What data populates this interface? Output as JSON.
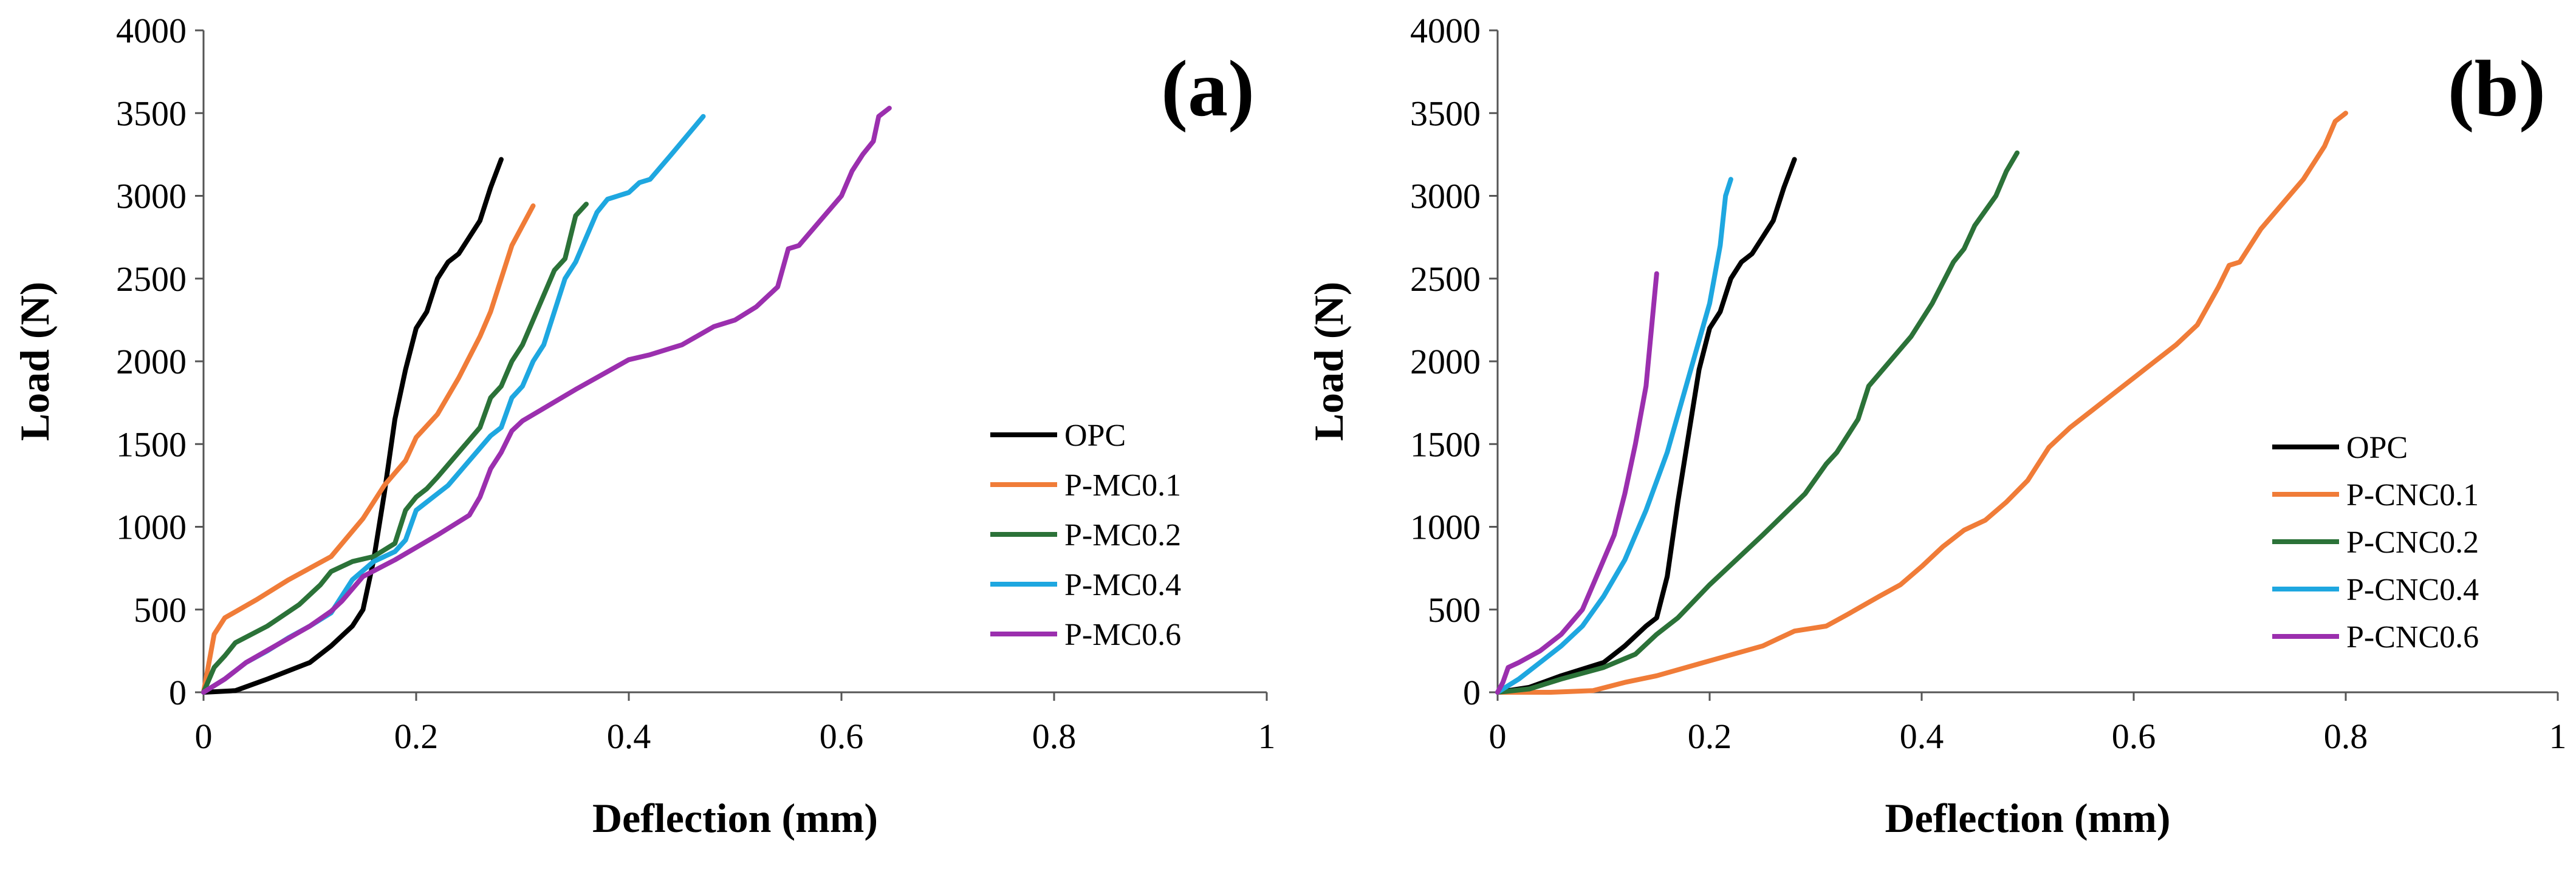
{
  "colors": {
    "OPC": "#000000",
    "s1": "#f07c38",
    "s2": "#2b7238",
    "s3": "#1ea7e0",
    "s4": "#9b2fae"
  },
  "chart_data": [
    {
      "type": "line",
      "panel_label": "(a)",
      "xlabel": "Deflection (mm)",
      "ylabel": "Load  (N)",
      "xlim": [
        0,
        1
      ],
      "ylim": [
        0,
        4000
      ],
      "xticks": [
        "0",
        "0.2",
        "0.4",
        "0.6",
        "0.8",
        "1"
      ],
      "xtick_values": [
        0,
        0.2,
        0.4,
        0.6,
        0.8,
        1
      ],
      "yticks": [
        "0",
        "500",
        "1000",
        "1500",
        "2000",
        "2500",
        "3000",
        "3500",
        "4000"
      ],
      "ytick_values": [
        0,
        500,
        1000,
        1500,
        2000,
        2500,
        3000,
        3500,
        4000
      ],
      "grid": false,
      "legend_position": "right-middle",
      "series": [
        {
          "name": "OPC",
          "color_key": "OPC",
          "points": [
            [
              0,
              0
            ],
            [
              0.03,
              10
            ],
            [
              0.06,
              80
            ],
            [
              0.1,
              180
            ],
            [
              0.12,
              280
            ],
            [
              0.14,
              400
            ],
            [
              0.15,
              500
            ],
            [
              0.16,
              800
            ],
            [
              0.17,
              1200
            ],
            [
              0.18,
              1650
            ],
            [
              0.19,
              1950
            ],
            [
              0.2,
              2200
            ],
            [
              0.21,
              2300
            ],
            [
              0.22,
              2500
            ],
            [
              0.23,
              2600
            ],
            [
              0.24,
              2650
            ],
            [
              0.25,
              2750
            ],
            [
              0.26,
              2850
            ],
            [
              0.27,
              3050
            ],
            [
              0.28,
              3220
            ]
          ]
        },
        {
          "name": "P-MC0.1",
          "color_key": "s1",
          "points": [
            [
              0,
              0
            ],
            [
              0.01,
              350
            ],
            [
              0.02,
              450
            ],
            [
              0.05,
              560
            ],
            [
              0.08,
              680
            ],
            [
              0.12,
              820
            ],
            [
              0.15,
              1050
            ],
            [
              0.17,
              1250
            ],
            [
              0.19,
              1400
            ],
            [
              0.2,
              1540
            ],
            [
              0.22,
              1680
            ],
            [
              0.24,
              1900
            ],
            [
              0.26,
              2150
            ],
            [
              0.27,
              2300
            ],
            [
              0.28,
              2500
            ],
            [
              0.29,
              2700
            ],
            [
              0.31,
              2940
            ]
          ]
        },
        {
          "name": "P-MC0.2",
          "color_key": "s2",
          "points": [
            [
              0,
              0
            ],
            [
              0.01,
              150
            ],
            [
              0.02,
              220
            ],
            [
              0.03,
              300
            ],
            [
              0.06,
              400
            ],
            [
              0.09,
              530
            ],
            [
              0.11,
              650
            ],
            [
              0.12,
              730
            ],
            [
              0.14,
              790
            ],
            [
              0.16,
              820
            ],
            [
              0.18,
              900
            ],
            [
              0.19,
              1100
            ],
            [
              0.2,
              1180
            ],
            [
              0.21,
              1230
            ],
            [
              0.22,
              1300
            ],
            [
              0.24,
              1450
            ],
            [
              0.26,
              1600
            ],
            [
              0.27,
              1780
            ],
            [
              0.28,
              1850
            ],
            [
              0.29,
              2000
            ],
            [
              0.3,
              2100
            ],
            [
              0.31,
              2250
            ],
            [
              0.32,
              2400
            ],
            [
              0.33,
              2550
            ],
            [
              0.34,
              2620
            ],
            [
              0.35,
              2880
            ],
            [
              0.36,
              2950
            ]
          ]
        },
        {
          "name": "P-MC0.4",
          "color_key": "s3",
          "points": [
            [
              0,
              0
            ],
            [
              0.02,
              80
            ],
            [
              0.04,
              180
            ],
            [
              0.06,
              250
            ],
            [
              0.08,
              330
            ],
            [
              0.1,
              400
            ],
            [
              0.12,
              480
            ],
            [
              0.14,
              680
            ],
            [
              0.16,
              790
            ],
            [
              0.18,
              850
            ],
            [
              0.19,
              920
            ],
            [
              0.2,
              1100
            ],
            [
              0.22,
              1200
            ],
            [
              0.23,
              1250
            ],
            [
              0.25,
              1400
            ],
            [
              0.27,
              1550
            ],
            [
              0.28,
              1600
            ],
            [
              0.29,
              1780
            ],
            [
              0.3,
              1850
            ],
            [
              0.31,
              2000
            ],
            [
              0.32,
              2100
            ],
            [
              0.33,
              2300
            ],
            [
              0.34,
              2500
            ],
            [
              0.35,
              2600
            ],
            [
              0.36,
              2750
            ],
            [
              0.37,
              2900
            ],
            [
              0.38,
              2980
            ],
            [
              0.4,
              3020
            ],
            [
              0.41,
              3080
            ],
            [
              0.42,
              3100
            ],
            [
              0.44,
              3250
            ],
            [
              0.47,
              3480
            ]
          ]
        },
        {
          "name": "P-MC0.6",
          "color_key": "s4",
          "points": [
            [
              0,
              0
            ],
            [
              0.02,
              80
            ],
            [
              0.04,
              180
            ],
            [
              0.07,
              290
            ],
            [
              0.1,
              400
            ],
            [
              0.12,
              490
            ],
            [
              0.13,
              550
            ],
            [
              0.15,
              700
            ],
            [
              0.18,
              800
            ],
            [
              0.22,
              950
            ],
            [
              0.25,
              1070
            ],
            [
              0.26,
              1180
            ],
            [
              0.27,
              1350
            ],
            [
              0.28,
              1450
            ],
            [
              0.29,
              1580
            ],
            [
              0.3,
              1640
            ],
            [
              0.35,
              1830
            ],
            [
              0.4,
              2010
            ],
            [
              0.42,
              2040
            ],
            [
              0.44,
              2080
            ],
            [
              0.45,
              2100
            ],
            [
              0.48,
              2210
            ],
            [
              0.5,
              2250
            ],
            [
              0.52,
              2330
            ],
            [
              0.54,
              2450
            ],
            [
              0.55,
              2680
            ],
            [
              0.56,
              2700
            ],
            [
              0.58,
              2850
            ],
            [
              0.6,
              3000
            ],
            [
              0.61,
              3150
            ],
            [
              0.62,
              3250
            ],
            [
              0.63,
              3330
            ],
            [
              0.635,
              3480
            ],
            [
              0.645,
              3530
            ]
          ]
        }
      ]
    },
    {
      "type": "line",
      "panel_label": "(b)",
      "xlabel": "Deflection (mm)",
      "ylabel": "Load  (N)",
      "xlim": [
        0,
        1
      ],
      "ylim": [
        0,
        4000
      ],
      "xticks": [
        "0",
        "0.2",
        "0.4",
        "0.6",
        "0.8",
        "1"
      ],
      "xtick_values": [
        0,
        0.2,
        0.4,
        0.6,
        0.8,
        1
      ],
      "yticks": [
        "0",
        "500",
        "1000",
        "1500",
        "2000",
        "2500",
        "3000",
        "3500",
        "4000"
      ],
      "ytick_values": [
        0,
        500,
        1000,
        1500,
        2000,
        2500,
        3000,
        3500,
        4000
      ],
      "grid": false,
      "legend_position": "bottom-right",
      "series": [
        {
          "name": "OPC",
          "color_key": "OPC",
          "points": [
            [
              0,
              0
            ],
            [
              0.03,
              30
            ],
            [
              0.06,
              100
            ],
            [
              0.1,
              180
            ],
            [
              0.12,
              280
            ],
            [
              0.14,
              400
            ],
            [
              0.15,
              450
            ],
            [
              0.16,
              700
            ],
            [
              0.17,
              1150
            ],
            [
              0.18,
              1550
            ],
            [
              0.19,
              1950
            ],
            [
              0.2,
              2200
            ],
            [
              0.21,
              2300
            ],
            [
              0.22,
              2500
            ],
            [
              0.23,
              2600
            ],
            [
              0.24,
              2650
            ],
            [
              0.25,
              2750
            ],
            [
              0.26,
              2850
            ],
            [
              0.27,
              3050
            ],
            [
              0.28,
              3220
            ]
          ]
        },
        {
          "name": "P-CNC0.1",
          "color_key": "s1",
          "points": [
            [
              0,
              0
            ],
            [
              0.05,
              0
            ],
            [
              0.09,
              10
            ],
            [
              0.12,
              60
            ],
            [
              0.15,
              100
            ],
            [
              0.2,
              190
            ],
            [
              0.25,
              280
            ],
            [
              0.28,
              370
            ],
            [
              0.31,
              400
            ],
            [
              0.33,
              470
            ],
            [
              0.36,
              580
            ],
            [
              0.38,
              650
            ],
            [
              0.4,
              760
            ],
            [
              0.42,
              880
            ],
            [
              0.44,
              980
            ],
            [
              0.46,
              1040
            ],
            [
              0.48,
              1150
            ],
            [
              0.5,
              1280
            ],
            [
              0.52,
              1480
            ],
            [
              0.54,
              1600
            ],
            [
              0.56,
              1700
            ],
            [
              0.58,
              1800
            ],
            [
              0.6,
              1900
            ],
            [
              0.62,
              2000
            ],
            [
              0.64,
              2100
            ],
            [
              0.66,
              2220
            ],
            [
              0.68,
              2450
            ],
            [
              0.69,
              2580
            ],
            [
              0.7,
              2600
            ],
            [
              0.72,
              2800
            ],
            [
              0.74,
              2950
            ],
            [
              0.76,
              3100
            ],
            [
              0.78,
              3300
            ],
            [
              0.79,
              3450
            ],
            [
              0.8,
              3500
            ]
          ]
        },
        {
          "name": "P-CNC0.2",
          "color_key": "s2",
          "points": [
            [
              0,
              0
            ],
            [
              0.03,
              20
            ],
            [
              0.06,
              80
            ],
            [
              0.1,
              150
            ],
            [
              0.13,
              230
            ],
            [
              0.15,
              350
            ],
            [
              0.17,
              450
            ],
            [
              0.2,
              650
            ],
            [
              0.25,
              950
            ],
            [
              0.29,
              1200
            ],
            [
              0.31,
              1380
            ],
            [
              0.32,
              1450
            ],
            [
              0.34,
              1650
            ],
            [
              0.35,
              1850
            ],
            [
              0.37,
              2000
            ],
            [
              0.39,
              2150
            ],
            [
              0.41,
              2350
            ],
            [
              0.43,
              2600
            ],
            [
              0.44,
              2680
            ],
            [
              0.45,
              2820
            ],
            [
              0.47,
              3000
            ],
            [
              0.48,
              3150
            ],
            [
              0.49,
              3260
            ]
          ]
        },
        {
          "name": "P-CNC0.4",
          "color_key": "s3",
          "points": [
            [
              0,
              0
            ],
            [
              0.02,
              80
            ],
            [
              0.04,
              180
            ],
            [
              0.06,
              280
            ],
            [
              0.08,
              400
            ],
            [
              0.1,
              580
            ],
            [
              0.12,
              800
            ],
            [
              0.14,
              1100
            ],
            [
              0.16,
              1450
            ],
            [
              0.18,
              1900
            ],
            [
              0.2,
              2350
            ],
            [
              0.21,
              2700
            ],
            [
              0.215,
              3000
            ],
            [
              0.22,
              3100
            ]
          ]
        },
        {
          "name": "P-CNC0.6",
          "color_key": "s4",
          "points": [
            [
              0,
              0
            ],
            [
              0.005,
              60
            ],
            [
              0.01,
              150
            ],
            [
              0.02,
              180
            ],
            [
              0.04,
              250
            ],
            [
              0.06,
              350
            ],
            [
              0.08,
              500
            ],
            [
              0.09,
              650
            ],
            [
              0.1,
              800
            ],
            [
              0.11,
              950
            ],
            [
              0.12,
              1200
            ],
            [
              0.13,
              1500
            ],
            [
              0.14,
              1850
            ],
            [
              0.15,
              2530
            ]
          ]
        }
      ]
    }
  ]
}
